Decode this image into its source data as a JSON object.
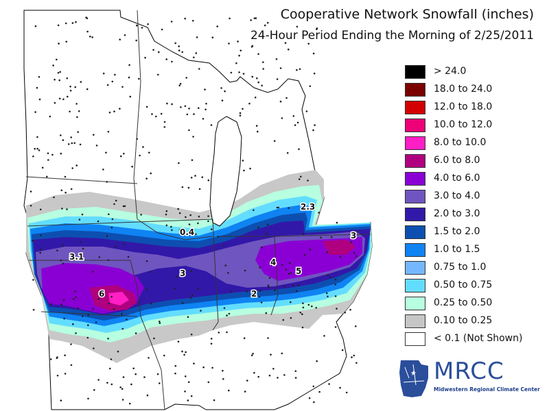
{
  "header": {
    "title": "Cooperative Network Snowfall (inches)",
    "subtitle": "24-Hour Period Ending the Morning of 2/25/2011"
  },
  "legend": {
    "items": [
      {
        "label": "> 24.0",
        "color": "#000000"
      },
      {
        "label": "18.0 to 24.0",
        "color": "#7a0000"
      },
      {
        "label": "12.0 to 18.0",
        "color": "#d40000"
      },
      {
        "label": "10.0 to 12.0",
        "color": "#ee0077"
      },
      {
        "label": "8.0 to 10.0",
        "color": "#ff1fc5"
      },
      {
        "label": "6.0 to 8.0",
        "color": "#b0007f"
      },
      {
        "label": "4.0 to 6.0",
        "color": "#8a00d4"
      },
      {
        "label": "3.0 to 4.0",
        "color": "#6f55bf"
      },
      {
        "label": "2.0 to 3.0",
        "color": "#3218a8"
      },
      {
        "label": "1.5 to 2.0",
        "color": "#0d4fb0"
      },
      {
        "label": "1.0 to 1.5",
        "color": "#0f83f2"
      },
      {
        "label": "0.75 to 1.0",
        "color": "#75b7ff"
      },
      {
        "label": "0.50 to 0.75",
        "color": "#63ddff"
      },
      {
        "label": "0.25 to 0.50",
        "color": "#b7ffe0"
      },
      {
        "label": "0.10 to 0.25",
        "color": "#c6c6c6"
      },
      {
        "label": "< 0.1 (Not Shown)",
        "color": "#ffffff"
      }
    ]
  },
  "map": {
    "annotations": [
      {
        "name": "label-iowa-north",
        "text": "0.4"
      },
      {
        "name": "label-michigan-east",
        "text": "2.3"
      },
      {
        "name": "label-ohio-east",
        "text": "3"
      },
      {
        "name": "label-kansas",
        "text": "3.1"
      },
      {
        "name": "label-illinois",
        "text": "3"
      },
      {
        "name": "label-indiana",
        "text": "4"
      },
      {
        "name": "label-ohio",
        "text": "5"
      },
      {
        "name": "label-missouri",
        "text": "6"
      },
      {
        "name": "label-indiana-south",
        "text": "2"
      }
    ]
  },
  "logo": {
    "letters": "MRCC",
    "tagline": "Midwestern Regional Climate Center"
  }
}
